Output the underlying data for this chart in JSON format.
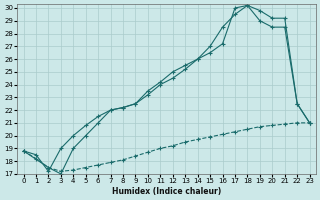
{
  "xlabel": "Humidex (Indice chaleur)",
  "bg_color": "#cce8e8",
  "line_color": "#1a6b6b",
  "grid_color": "#aacccc",
  "xlim": [
    -0.5,
    23.5
  ],
  "ylim": [
    17,
    30.3
  ],
  "xticks": [
    0,
    1,
    2,
    3,
    4,
    5,
    6,
    7,
    8,
    9,
    10,
    11,
    12,
    13,
    14,
    15,
    16,
    17,
    18,
    19,
    20,
    21,
    22,
    23
  ],
  "yticks": [
    17,
    18,
    19,
    20,
    21,
    22,
    23,
    24,
    25,
    26,
    27,
    28,
    29,
    30
  ],
  "line1_x": [
    0,
    1,
    2,
    3,
    4,
    5,
    6,
    7,
    8,
    9,
    10,
    11,
    12,
    13,
    14,
    15,
    16,
    17,
    18,
    19,
    20,
    21,
    22,
    23
  ],
  "line1_y": [
    18.8,
    18.2,
    17.5,
    17.2,
    17.3,
    17.5,
    17.7,
    17.9,
    18.1,
    18.4,
    18.7,
    19.0,
    19.2,
    19.5,
    19.7,
    19.9,
    20.1,
    20.3,
    20.5,
    20.7,
    20.8,
    20.9,
    21.0,
    21.0
  ],
  "line2_x": [
    0,
    1,
    2,
    3,
    4,
    5,
    6,
    7,
    8,
    9,
    10,
    11,
    12,
    13,
    14,
    15,
    16,
    17,
    18,
    19,
    20,
    21,
    22,
    23
  ],
  "line2_y": [
    18.8,
    18.5,
    17.2,
    19.0,
    20.0,
    20.8,
    21.5,
    22.0,
    22.2,
    22.5,
    23.2,
    24.0,
    24.5,
    25.2,
    26.0,
    26.5,
    27.2,
    30.0,
    30.2,
    29.0,
    28.5,
    28.5,
    22.5,
    21.0
  ],
  "line3_x": [
    0,
    2,
    3,
    4,
    5,
    6,
    7,
    8,
    9,
    10,
    11,
    12,
    13,
    14,
    15,
    16,
    17,
    18,
    19,
    20,
    21,
    22,
    23
  ],
  "line3_y": [
    18.8,
    17.5,
    17.0,
    19.0,
    20.0,
    21.0,
    22.0,
    22.2,
    22.5,
    23.5,
    24.2,
    25.0,
    25.5,
    26.0,
    27.0,
    28.5,
    29.5,
    30.2,
    29.8,
    29.2,
    29.2,
    22.5,
    21.0
  ]
}
